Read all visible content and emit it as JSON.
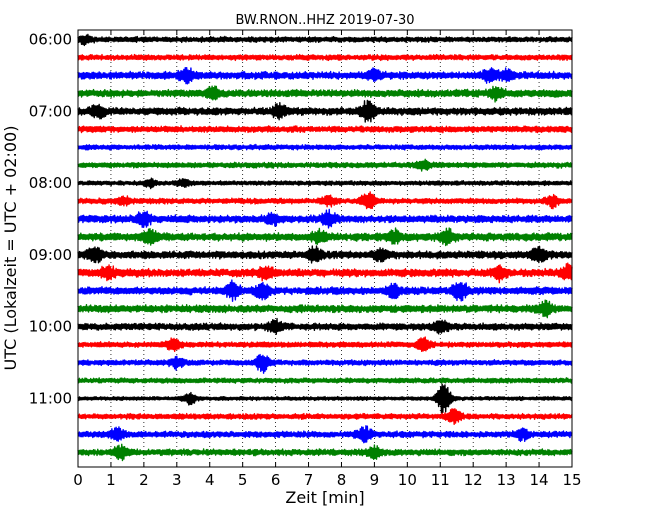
{
  "chart_data": {
    "type": "line",
    "title": "BW.RNON..HHZ 2019-07-30",
    "xlabel": "Zeit  [min]",
    "ylabel": "UTC (Lokalzeit = UTC + 02:00)",
    "xlim": [
      0,
      15
    ],
    "x_ticks": [
      "0",
      "1",
      "2",
      "3",
      "4",
      "5",
      "6",
      "7",
      "8",
      "9",
      "10",
      "11",
      "12",
      "13",
      "14",
      "15"
    ],
    "y_ticks": [
      "06:00",
      "07:00",
      "08:00",
      "09:00",
      "10:00",
      "11:00"
    ],
    "grid": "vertical dotted lines at each minute",
    "legend": "none",
    "trace_colors": [
      "#000000",
      "#ff0000",
      "#0000ff",
      "#008000"
    ],
    "series": [
      {
        "start": "06:00",
        "color": "#000000",
        "amplitude": 0.22,
        "events": [
          [
            0.2,
            0.3
          ]
        ]
      },
      {
        "start": "06:15",
        "color": "#ff0000",
        "amplitude": 0.22,
        "events": []
      },
      {
        "start": "06:30",
        "color": "#0000ff",
        "amplitude": 0.3,
        "events": [
          [
            3.3,
            0.55
          ],
          [
            9.0,
            0.4
          ],
          [
            12.5,
            0.5
          ],
          [
            13.0,
            0.45
          ]
        ]
      },
      {
        "start": "06:45",
        "color": "#008000",
        "amplitude": 0.3,
        "events": [
          [
            4.1,
            0.45
          ],
          [
            12.7,
            0.5
          ]
        ]
      },
      {
        "start": "07:00",
        "color": "#000000",
        "amplitude": 0.3,
        "events": [
          [
            0.6,
            0.5
          ],
          [
            6.1,
            0.55
          ],
          [
            8.8,
            0.8
          ]
        ]
      },
      {
        "start": "07:15",
        "color": "#ff0000",
        "amplitude": 0.25,
        "events": []
      },
      {
        "start": "07:30",
        "color": "#0000ff",
        "amplitude": 0.2,
        "events": []
      },
      {
        "start": "07:45",
        "color": "#008000",
        "amplitude": 0.22,
        "events": [
          [
            10.5,
            0.4
          ]
        ]
      },
      {
        "start": "08:00",
        "color": "#000000",
        "amplitude": 0.18,
        "events": [
          [
            2.2,
            0.3
          ],
          [
            3.2,
            0.25
          ]
        ]
      },
      {
        "start": "08:15",
        "color": "#ff0000",
        "amplitude": 0.22,
        "events": [
          [
            1.4,
            0.3
          ],
          [
            7.6,
            0.35
          ],
          [
            8.8,
            0.7
          ],
          [
            14.4,
            0.45
          ]
        ]
      },
      {
        "start": "08:30",
        "color": "#0000ff",
        "amplitude": 0.3,
        "events": [
          [
            2.0,
            0.55
          ],
          [
            7.6,
            0.6
          ],
          [
            5.9,
            0.4
          ]
        ]
      },
      {
        "start": "08:45",
        "color": "#008000",
        "amplitude": 0.32,
        "events": [
          [
            2.2,
            0.55
          ],
          [
            7.3,
            0.5
          ],
          [
            9.6,
            0.5
          ],
          [
            11.2,
            0.6
          ]
        ]
      },
      {
        "start": "09:00",
        "color": "#000000",
        "amplitude": 0.3,
        "events": [
          [
            0.5,
            0.55
          ],
          [
            7.2,
            0.6
          ],
          [
            9.2,
            0.5
          ],
          [
            14.0,
            0.6
          ]
        ]
      },
      {
        "start": "09:15",
        "color": "#ff0000",
        "amplitude": 0.32,
        "events": [
          [
            0.9,
            0.5
          ],
          [
            5.7,
            0.5
          ],
          [
            12.8,
            0.5
          ],
          [
            14.9,
            0.6
          ]
        ]
      },
      {
        "start": "09:30",
        "color": "#0000ff",
        "amplitude": 0.3,
        "events": [
          [
            4.7,
            0.65
          ],
          [
            5.6,
            0.6
          ],
          [
            9.6,
            0.5
          ],
          [
            11.6,
            0.8
          ]
        ]
      },
      {
        "start": "09:45",
        "color": "#008000",
        "amplitude": 0.3,
        "events": [
          [
            14.2,
            0.6
          ]
        ]
      },
      {
        "start": "10:00",
        "color": "#000000",
        "amplitude": 0.28,
        "events": [
          [
            6.0,
            0.5
          ],
          [
            11.0,
            0.5
          ]
        ]
      },
      {
        "start": "10:15",
        "color": "#ff0000",
        "amplitude": 0.22,
        "events": [
          [
            2.9,
            0.5
          ],
          [
            10.5,
            0.5
          ]
        ]
      },
      {
        "start": "10:30",
        "color": "#0000ff",
        "amplitude": 0.22,
        "events": [
          [
            3.0,
            0.45
          ],
          [
            5.6,
            0.75
          ]
        ]
      },
      {
        "start": "10:45",
        "color": "#008000",
        "amplitude": 0.2,
        "events": []
      },
      {
        "start": "11:00",
        "color": "#000000",
        "amplitude": 0.15,
        "events": [
          [
            3.4,
            0.45
          ],
          [
            11.1,
            1.3
          ]
        ]
      },
      {
        "start": "11:15",
        "color": "#ff0000",
        "amplitude": 0.22,
        "events": [
          [
            11.4,
            0.55
          ]
        ]
      },
      {
        "start": "11:30",
        "color": "#0000ff",
        "amplitude": 0.25,
        "events": [
          [
            1.2,
            0.5
          ],
          [
            8.7,
            0.55
          ],
          [
            13.5,
            0.4
          ]
        ]
      },
      {
        "start": "11:45",
        "color": "#008000",
        "amplitude": 0.25,
        "events": [
          [
            1.3,
            0.55
          ],
          [
            9.0,
            0.45
          ]
        ]
      }
    ]
  }
}
